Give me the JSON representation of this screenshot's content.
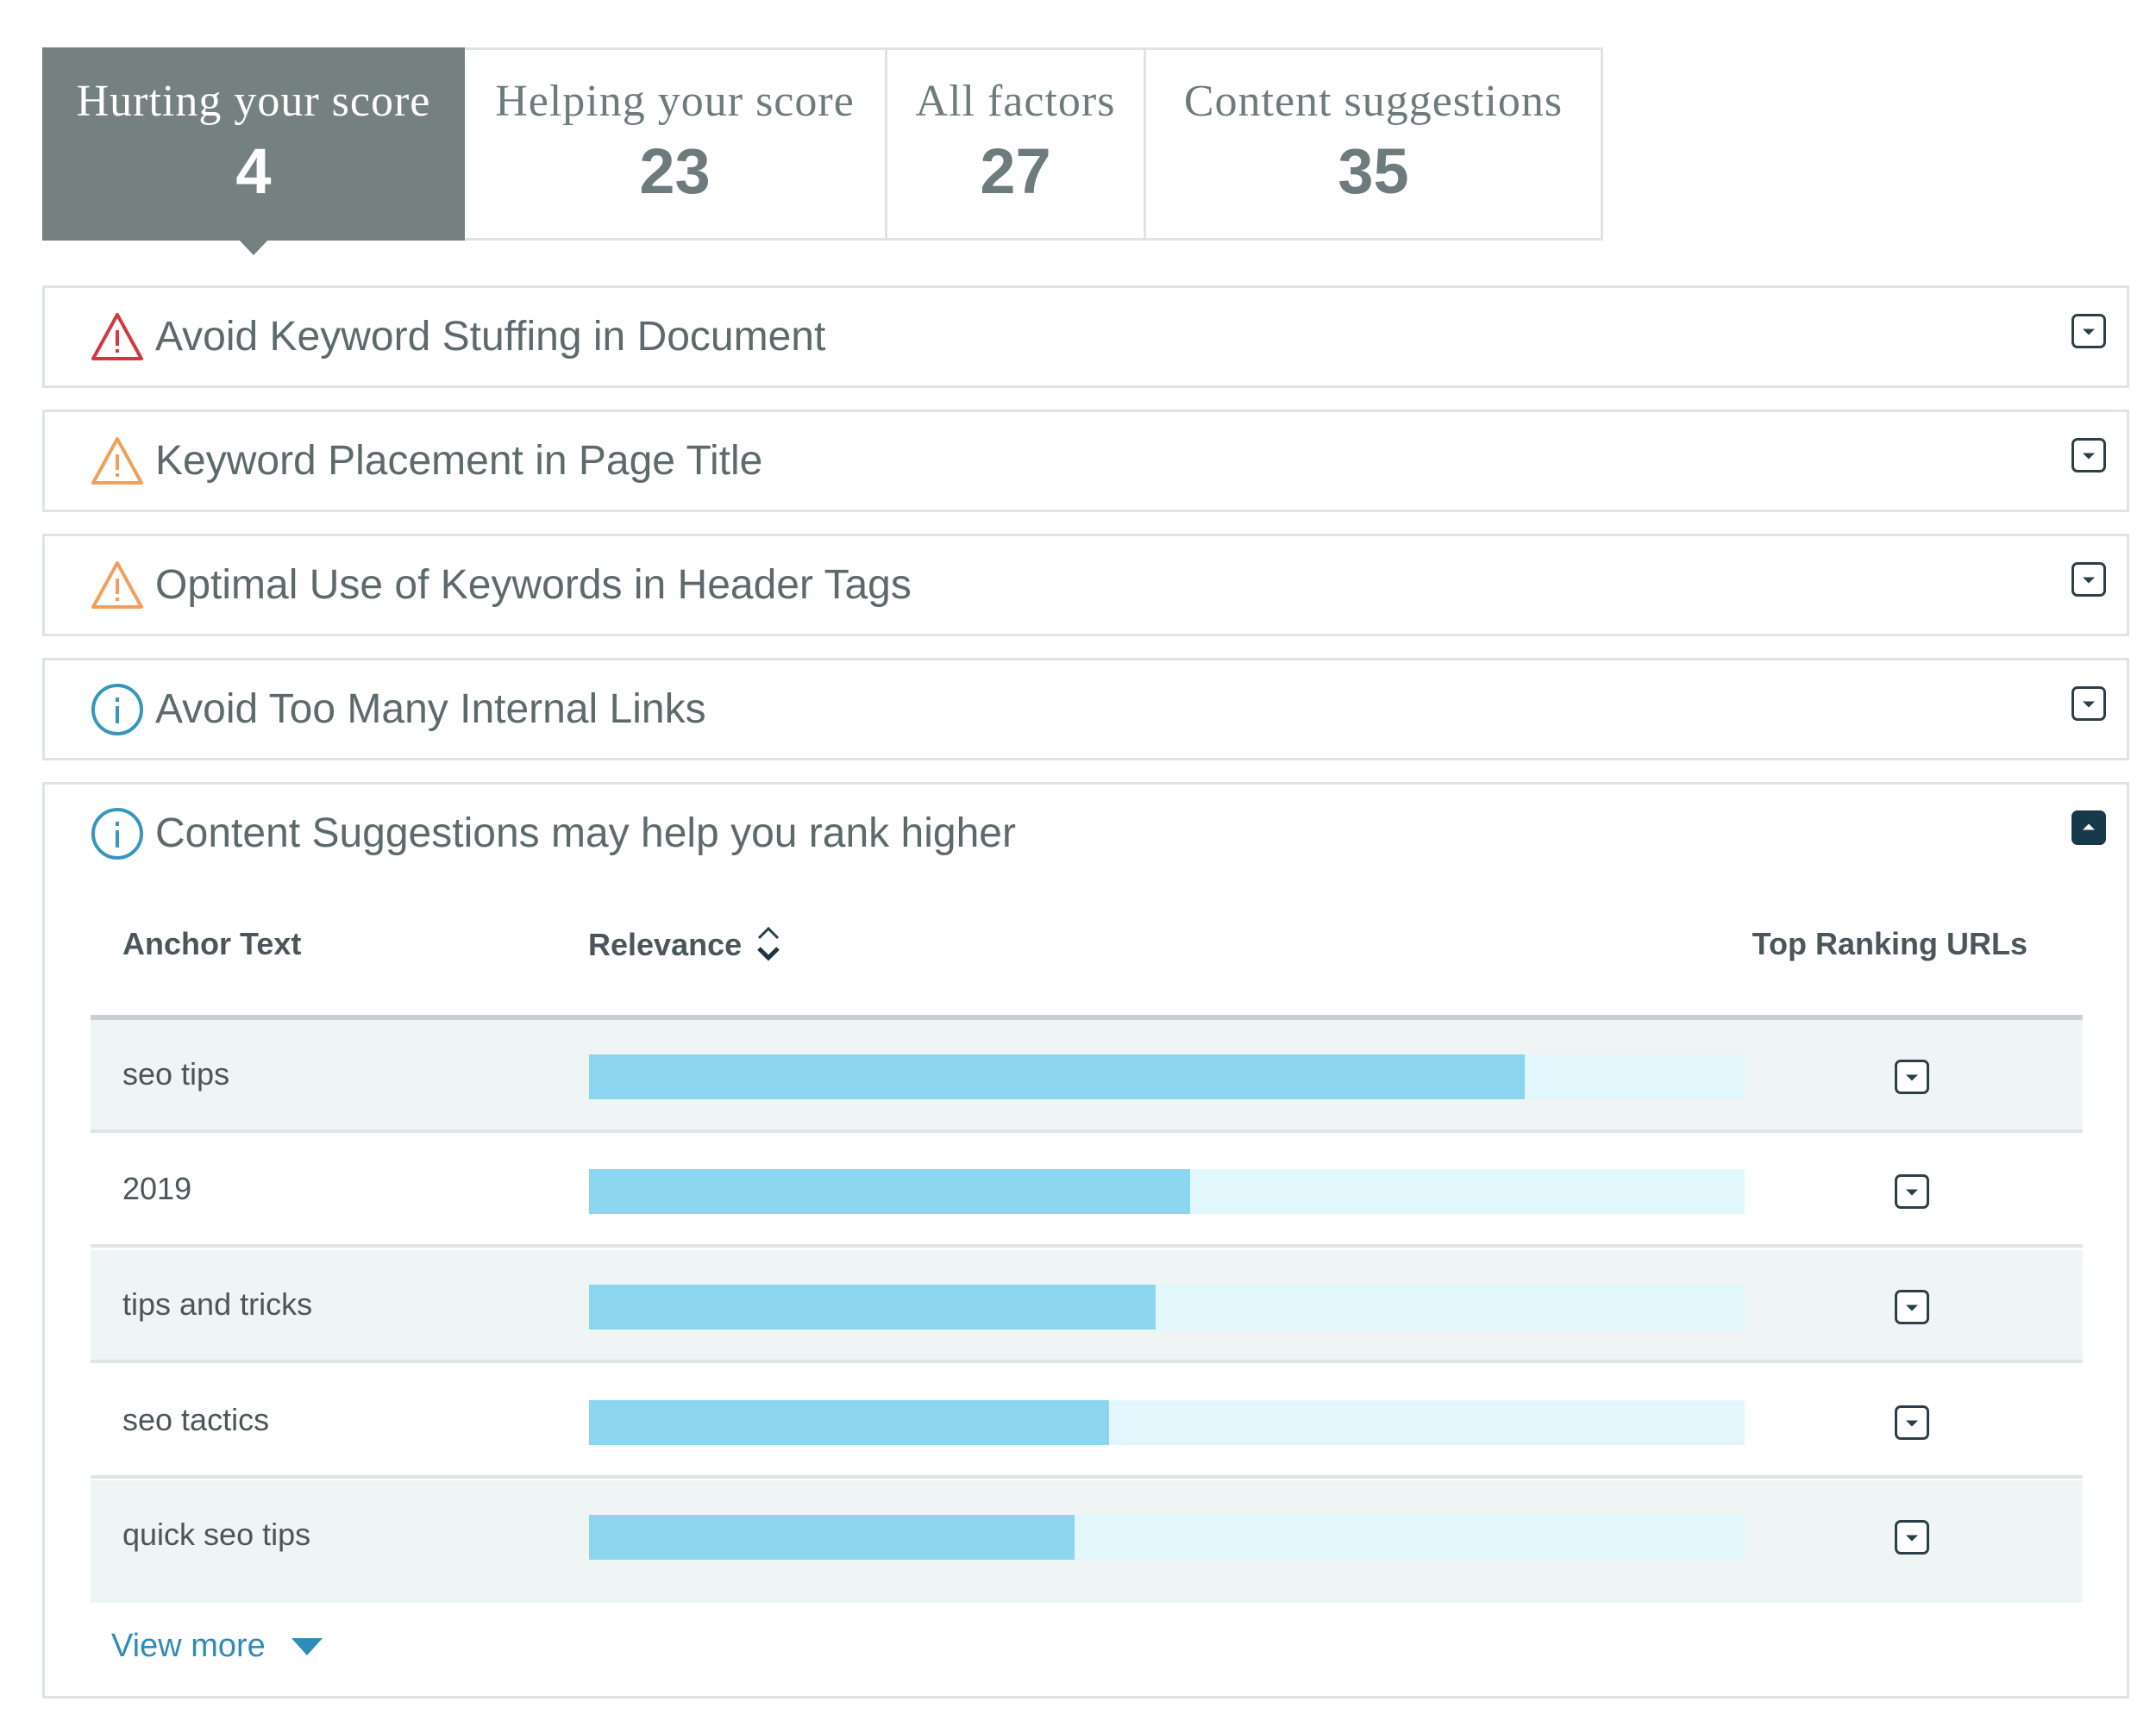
{
  "tabs": [
    {
      "label": "Hurting your score",
      "count": "4",
      "active": true
    },
    {
      "label": "Helping your score",
      "count": "23",
      "active": false
    },
    {
      "label": "All factors",
      "count": "27",
      "active": false
    },
    {
      "label": "Content suggestions",
      "count": "35",
      "active": false
    }
  ],
  "panels": [
    {
      "title": "Avoid Keyword Stuffing in Document",
      "icon": "warning-red-icon",
      "expanded": false
    },
    {
      "title": "Keyword Placement in Page Title",
      "icon": "warning-orange-icon",
      "expanded": false
    },
    {
      "title": "Optimal Use of Keywords in Header Tags",
      "icon": "warning-orange-icon",
      "expanded": false
    },
    {
      "title": "Avoid Too Many Internal Links",
      "icon": "info-icon",
      "expanded": false
    },
    {
      "title": "Content Suggestions may help you rank higher",
      "icon": "info-icon",
      "expanded": true
    }
  ],
  "suggestions_table": {
    "headers": {
      "anchor_text": "Anchor Text",
      "relevance": "Relevance",
      "top_ranking_urls": "Top Ranking URLs"
    },
    "rows": [
      {
        "anchor_text": "seo tips",
        "relevance": 0.81
      },
      {
        "anchor_text": "2019",
        "relevance": 0.52
      },
      {
        "anchor_text": "tips and tricks",
        "relevance": 0.49
      },
      {
        "anchor_text": "seo tactics",
        "relevance": 0.45
      },
      {
        "anchor_text": "quick seo tips",
        "relevance": 0.42
      }
    ],
    "view_more": "View more"
  },
  "colors": {
    "active_tab": "#758180",
    "warning_red": "#d0393e",
    "warning_orange": "#f0a05a",
    "info_blue": "#3597bd",
    "bar_fill": "#8cd5ef",
    "bar_track": "#e1f7fc",
    "link": "#2f8cb6"
  }
}
